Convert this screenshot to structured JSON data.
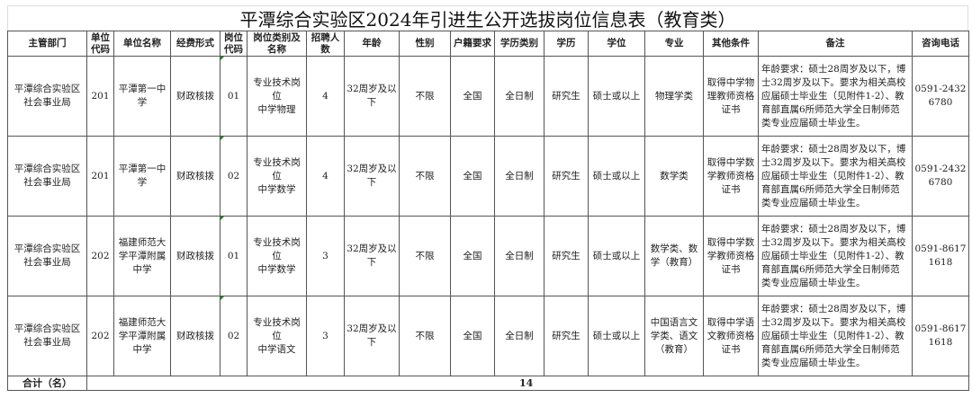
{
  "title": "平潭综合实验区2024年引进生公开选拔岗位信息表（教育类）",
  "headers": [
    "主管部门",
    "单位代码",
    "单位名称",
    "经费形式",
    "岗位代码",
    "岗位类别及名称",
    "招聘人数",
    "年龄",
    "性别",
    "户籍要求",
    "学历类别",
    "学历",
    "学位",
    "专业",
    "其他条件",
    "备注",
    "咨询电话"
  ],
  "rows": [
    [
      "平潭综合实验区社会事业局",
      "201",
      "平潭第一中学",
      "财政核拨",
      "01",
      "专业技术岗位\n中学物理",
      "4",
      "32周岁及以下",
      "不限",
      "全国",
      "全日制",
      "研究生",
      "硕士或以上",
      "物理学类",
      "取得中学物理教师资格证书",
      "年龄要求：硕士28周岁及以下，博士32周岁及以下。要求为相关高校应届硕士毕业生（见附件1-2）、教育部直属6所师范大学全日制师范类专业应届硕士毕业生。",
      "0591-24326780"
    ],
    [
      "平潭综合实验区社会事业局",
      "201",
      "平潭第一中学",
      "财政核拨",
      "02",
      "专业技术岗位\n中学数学",
      "4",
      "32周岁及以下",
      "不限",
      "全国",
      "全日制",
      "研究生",
      "硕士或以上",
      "数学类",
      "取得中学数学教师资格证书",
      "年龄要求：硕士28周岁及以下，博士32周岁及以下。要求为相关高校应届硕士毕业生（见附件1-2）、教育部直属6所师范大学全日制师范类专业应届硕士毕业生。",
      "0591-24326780"
    ],
    [
      "平潭综合实验区社会事业局",
      "202",
      "福建师范大学平潭附属中学",
      "财政核拨",
      "01",
      "专业技术岗位\n中学数学",
      "3",
      "32周岁及以下",
      "不限",
      "全国",
      "全日制",
      "研究生",
      "硕士或以上",
      "数学类、数学（教育）",
      "取得中学数学教师资格证书",
      "年龄要求：硕士28周岁及以下，博士32周岁及以下。要求为相关高校应届硕士毕业生（见附件1-2）、教育部直属6所师范大学全日制师范类专业应届硕士毕业生。",
      "0591-86171618"
    ],
    [
      "平潭综合实验区社会事业局",
      "202",
      "福建师范大学平潭附属中学",
      "财政核拨",
      "02",
      "专业技术岗位\n中学语文",
      "3",
      "32周岁及以下",
      "不限",
      "全国",
      "全日制",
      "研究生",
      "硕士或以上",
      "中国语言文学类、语文（教育）",
      "取得中学语文教师资格证书",
      "年龄要求：硕士28周岁及以下，博士32周岁及以下。要求为相关高校应届硕士毕业生（见附件1-2）、教育部直属6所师范大学全日制师范类专业应届硕士毕业生。",
      "0591-86171618"
    ]
  ],
  "total": {
    "label": "合计（名）",
    "value": "14"
  }
}
